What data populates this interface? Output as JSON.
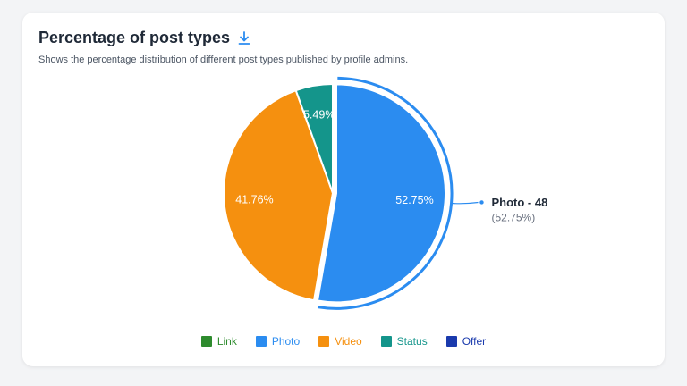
{
  "header": {
    "title": "Percentage of post types",
    "subtitle": "Shows the percentage distribution of different post types published by profile admins."
  },
  "icons": {
    "download": "download-icon"
  },
  "colors": {
    "Link": "#2e8b2e",
    "Photo": "#2b8cf0",
    "Video": "#f5900f",
    "Status": "#14958b",
    "Offer": "#1a3aad"
  },
  "callout": {
    "name": "Photo - 48",
    "percent": "(52.75%)"
  },
  "chart_data": {
    "type": "pie",
    "title": "Percentage of post types",
    "categories": [
      "Link",
      "Photo",
      "Video",
      "Status",
      "Offer"
    ],
    "values": [
      0,
      52.75,
      41.76,
      5.49,
      0
    ],
    "labels": [
      "",
      "52.75%",
      "41.76%",
      "5.49%",
      ""
    ],
    "counts": {
      "Photo": 48
    },
    "highlighted": "Photo",
    "legend": "bottom"
  }
}
